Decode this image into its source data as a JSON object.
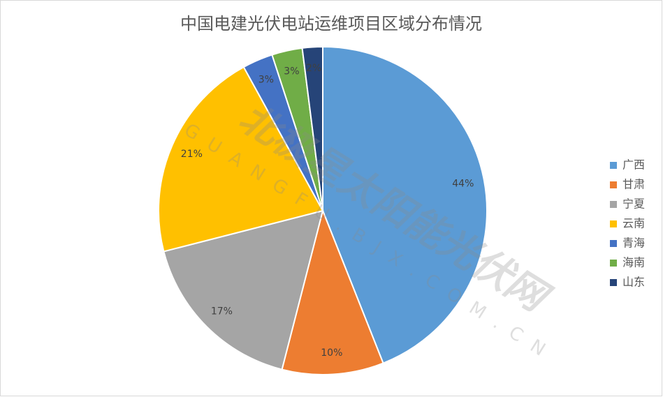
{
  "chart_data": {
    "type": "pie",
    "title": "中国电建光伏电站运维项目区域分布情况",
    "categories": [
      "广西",
      "甘肃",
      "宁夏",
      "云南",
      "青海",
      "海南",
      "山东"
    ],
    "values": [
      44,
      10,
      17,
      21,
      3,
      3,
      2
    ],
    "value_labels": [
      "44%",
      "10%",
      "17%",
      "21%",
      "3%",
      "3%",
      "2%"
    ],
    "colors": [
      "#5b9bd5",
      "#ed7d31",
      "#a5a5a5",
      "#ffc000",
      "#4472c4",
      "#70ad47",
      "#264478"
    ],
    "legend": "right"
  },
  "watermark": {
    "name": "北极星太阳能光伏网",
    "url": "GUANGFU.BJX.COM.CN"
  }
}
